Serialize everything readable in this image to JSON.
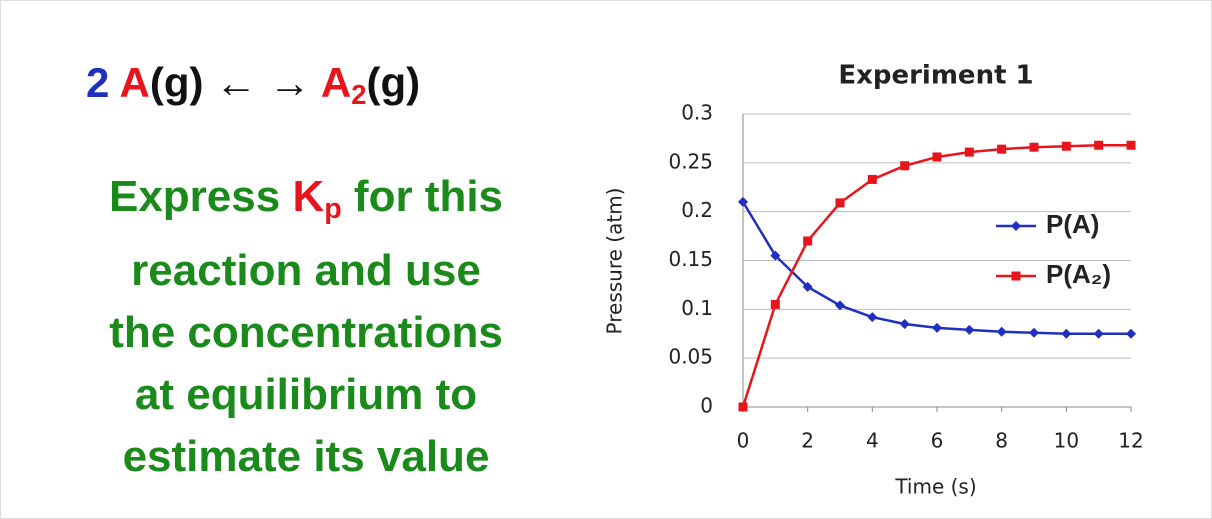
{
  "equation": {
    "coefficient": "2",
    "reactant": "A",
    "middle": "(g) ← →",
    "product": "A",
    "product_subscript": "2",
    "product_state": "(g)"
  },
  "prompt": {
    "word": "Express",
    "k": "K",
    "k_subscript": "p",
    "rest_line1": "for this",
    "lines": [
      "reaction and use",
      "the concentrations",
      "at equilibrium to",
      "estimate its value"
    ]
  },
  "chart_data": {
    "type": "line",
    "title": "Experiment 1",
    "x_label": "Time (s)",
    "y_label": "Pressure (atm)",
    "x": [
      0,
      1,
      2,
      3,
      4,
      5,
      6,
      7,
      8,
      9,
      10,
      11,
      12
    ],
    "series": [
      {
        "name": "P(A)",
        "color": "#1f2fc0",
        "marker": "diamond",
        "values": [
          0.21,
          0.155,
          0.123,
          0.104,
          0.092,
          0.085,
          0.081,
          0.079,
          0.077,
          0.076,
          0.075,
          0.075,
          0.075
        ]
      },
      {
        "name": "P(A₂)",
        "color": "#e8141c",
        "marker": "square",
        "values": [
          0,
          0.105,
          0.17,
          0.209,
          0.233,
          0.247,
          0.256,
          0.261,
          0.264,
          0.266,
          0.267,
          0.268,
          0.268
        ]
      }
    ],
    "xlim": [
      0,
      12
    ],
    "xticks": [
      0,
      2,
      4,
      6,
      8,
      10,
      12
    ],
    "ylim": [
      0,
      0.3
    ],
    "yticks": [
      0,
      0.05,
      0.1,
      0.15,
      0.2,
      0.25,
      0.3
    ],
    "grid": true,
    "legend": "right"
  }
}
